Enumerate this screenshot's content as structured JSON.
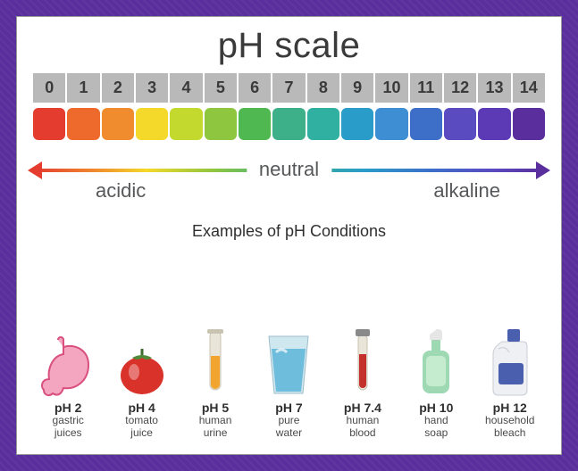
{
  "title": "pH scale",
  "scale": {
    "values": [
      "0",
      "1",
      "2",
      "3",
      "4",
      "5",
      "6",
      "7",
      "8",
      "9",
      "10",
      "11",
      "12",
      "13",
      "14"
    ],
    "colors": [
      "#e43d2f",
      "#ee6a2c",
      "#f08b2e",
      "#f4d92a",
      "#c3d92e",
      "#8fc63f",
      "#4fb850",
      "#3db08a",
      "#2fb0a0",
      "#2a9cca",
      "#3d8ed2",
      "#3d6fc9",
      "#5a4bc0",
      "#5c3ab5",
      "#5a2e9c"
    ],
    "num_bg": "#b9b9b9",
    "num_fontsize": 18
  },
  "axis": {
    "neutral": "neutral",
    "acidic": "acidic",
    "alkaline": "alkaline",
    "label_fontsize": 22,
    "gradient_stops": [
      "#e43d2f",
      "#f08b2e",
      "#f4d92a",
      "#8fc63f",
      "#3db08a",
      "#2a9cca",
      "#3d6fc9",
      "#5a4bc0",
      "#5a2e9c"
    ]
  },
  "examples_title": "Examples of pH Conditions",
  "examples": [
    {
      "ph": "pH 2",
      "name": "gastric\njuices",
      "icon": "stomach"
    },
    {
      "ph": "pH 4",
      "name": "tomato\njuice",
      "icon": "tomato"
    },
    {
      "ph": "pH 5",
      "name": "human\nurine",
      "icon": "test-tube"
    },
    {
      "ph": "pH 7",
      "name": "pure\nwater",
      "icon": "water-glass"
    },
    {
      "ph": "pH 7.4",
      "name": "human\nblood",
      "icon": "blood-tube"
    },
    {
      "ph": "pH 10",
      "name": "hand\nsoap",
      "icon": "soap"
    },
    {
      "ph": "pH 12",
      "name": "household\nbleach",
      "icon": "bleach"
    }
  ],
  "card_bg": "#ffffff",
  "page_bg": "#5a2e9c"
}
